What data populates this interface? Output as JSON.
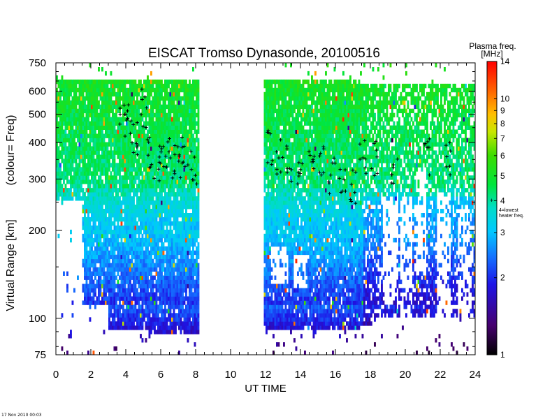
{
  "chart_data": {
    "type": "heatmap",
    "title": "EISCAT Tromso Dynasonde,   20100516",
    "xlabel": "UT TIME",
    "ylabel_main": "Virtual Range [km]",
    "ylabel_sub": "(colour= Freq)",
    "x_ticks": [
      "0",
      "2",
      "4",
      "6",
      "8",
      "10",
      "12",
      "14",
      "16",
      "18",
      "20",
      "22",
      "24"
    ],
    "xlim": [
      0,
      24
    ],
    "y_ticks": [
      "75",
      "100",
      "200",
      "300",
      "400",
      "500",
      "600",
      "750"
    ],
    "ylim": [
      75,
      750
    ],
    "y_scale": "log",
    "data_gaps_ut": [
      [
        8.1,
        11.8
      ]
    ],
    "colorbar": {
      "title": "Plasma freq.",
      "units": "[MHz]",
      "ticks": [
        "1",
        "2",
        "3",
        "4",
        "5",
        "6",
        "7",
        "8",
        "9",
        "10",
        "14"
      ],
      "tick_values": [
        1,
        2,
        3,
        4,
        5,
        6,
        7,
        8,
        9,
        10,
        14
      ],
      "range": [
        1,
        14
      ],
      "scale": "log",
      "heater_marker": "+",
      "heater_note_1": "4=lowest",
      "heater_note_2": "heater freq."
    },
    "heater_freq_range_km": [
      {
        "ut": 3.8,
        "km": 470
      },
      {
        "ut": 4.2,
        "km": 460
      },
      {
        "ut": 4.6,
        "km": 420
      },
      {
        "ut": 5.0,
        "km": 520
      },
      {
        "ut": 5.4,
        "km": 380
      },
      {
        "ut": 5.8,
        "km": 340
      },
      {
        "ut": 6.2,
        "km": 330
      },
      {
        "ut": 6.6,
        "km": 350
      },
      {
        "ut": 7.0,
        "km": 350
      },
      {
        "ut": 7.4,
        "km": 370
      },
      {
        "ut": 7.9,
        "km": 320
      },
      {
        "ut": 12.2,
        "km": 380
      },
      {
        "ut": 12.8,
        "km": 360
      },
      {
        "ut": 13.4,
        "km": 330
      },
      {
        "ut": 14.0,
        "km": 320
      },
      {
        "ut": 14.6,
        "km": 330
      },
      {
        "ut": 15.2,
        "km": 340
      },
      {
        "ut": 15.8,
        "km": 300
      },
      {
        "ut": 16.4,
        "km": 290
      },
      {
        "ut": 17.0,
        "km": 280
      },
      {
        "ut": 17.6,
        "km": 360
      },
      {
        "ut": 18.2,
        "km": 350
      },
      {
        "ut": 19.4,
        "km": 320
      },
      {
        "ut": 21.2,
        "km": 350
      },
      {
        "ut": 22.4,
        "km": 340
      }
    ],
    "footer": "17 Nov 2010 00:03"
  }
}
